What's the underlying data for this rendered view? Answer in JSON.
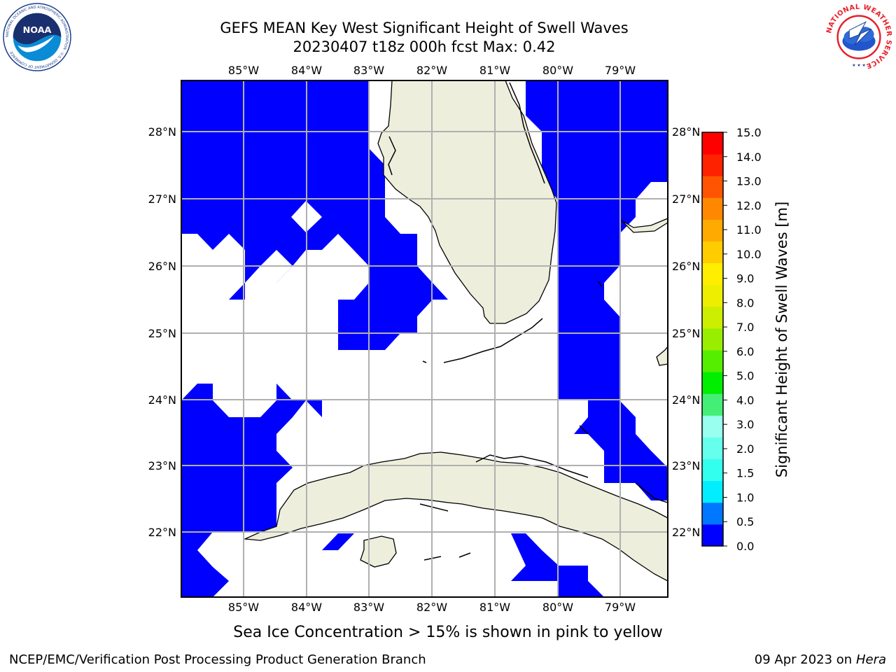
{
  "header": {
    "title_line1": "GEFS MEAN Key West Significant Height of Swell Waves",
    "title_line2": "20230407 t18z 000h fcst   Max: 0.42"
  },
  "logos": {
    "noaa": {
      "text": "NOAA",
      "ring_text": "NATIONAL OCEANIC AND ATMOSPHERIC ADMINISTRATION · U.S. DEPARTMENT OF COMMERCE"
    },
    "nws": {
      "ring_text": "NATIONAL WEATHER SERVICE"
    }
  },
  "map": {
    "lon_ticks": [
      "85°W",
      "84°W",
      "83°W",
      "82°W",
      "81°W",
      "80°W",
      "79°W"
    ],
    "lat_ticks": [
      "28°N",
      "27°N",
      "26°N",
      "25°N",
      "24°N",
      "23°N",
      "22°N"
    ],
    "colors": {
      "swell": "#0000ff",
      "land": "#eeeedd",
      "ocean": "#ffffff",
      "grid": "#b0b0b0"
    }
  },
  "colorbar": {
    "label": "Significant Height of Swell Waves [m]",
    "ticks": [
      "0.0",
      "0.5",
      "1.0",
      "1.5",
      "2.0",
      "3.0",
      "4.0",
      "5.0",
      "6.0",
      "7.0",
      "8.0",
      "9.0",
      "10.0",
      "11.0",
      "12.0",
      "13.0",
      "14.0",
      "15.0"
    ],
    "colors": [
      "#0000ff",
      "#0077ff",
      "#00eeff",
      "#33ffee",
      "#66ffee",
      "#99ffee",
      "#44ee77",
      "#00ee00",
      "#55ee00",
      "#99ee00",
      "#ccee00",
      "#eeee00",
      "#ffee00",
      "#ffcc00",
      "#ffaa00",
      "#ff8800",
      "#ff5500",
      "#ff2200",
      "#ff0000"
    ]
  },
  "note": "Sea Ice Concentration > 15% is shown in pink to yellow",
  "footer": {
    "left": "NCEP/EMC/Verification Post Processing Product Generation Branch",
    "right_prefix": "09 Apr 2023 on ",
    "right_host": "Hera"
  }
}
